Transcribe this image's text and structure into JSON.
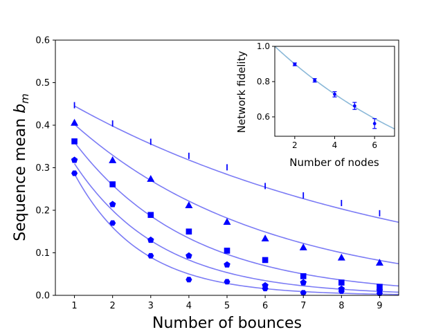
{
  "chart_data": [
    {
      "type": "scatter",
      "xlabel": "Number of bounces",
      "ylabel_text": "Sequence mean ",
      "ylabel_symbol": "b",
      "ylabel_subscript": "m",
      "xlim": [
        0.5,
        9.5
      ],
      "ylim": [
        0.0,
        0.6
      ],
      "xticks": [
        "1",
        "2",
        "3",
        "4",
        "5",
        "6",
        "7",
        "8",
        "9"
      ],
      "yticks": [
        "0.0",
        "0.1",
        "0.2",
        "0.3",
        "0.4",
        "0.5",
        "0.6"
      ],
      "grid": false,
      "x": [
        1,
        2,
        3,
        4,
        5,
        6,
        7,
        8,
        9
      ],
      "series": [
        {
          "marker": "vline",
          "values": [
            0.447,
            0.404,
            0.361,
            0.328,
            0.301,
            0.257,
            0.235,
            0.217,
            0.193
          ],
          "fit_a": 0.498,
          "fit_p": 0.894
        },
        {
          "marker": "triangle",
          "values": [
            0.406,
            0.318,
            0.274,
            0.212,
            0.173,
            0.134,
            0.113,
            0.089,
            0.077
          ],
          "fit_a": 0.49,
          "fit_p": 0.82
        },
        {
          "marker": "square",
          "values": [
            0.362,
            0.261,
            0.189,
            0.15,
            0.105,
            0.083,
            0.045,
            0.03,
            0.02
          ],
          "fit_a": 0.5,
          "fit_p": 0.72
        },
        {
          "marker": "pentagon",
          "values": [
            0.318,
            0.214,
            0.13,
            0.093,
            0.072,
            0.023,
            0.03,
            0.015,
            0.011
          ],
          "fit_a": 0.48,
          "fit_p": 0.645
        },
        {
          "marker": "hexagon",
          "values": [
            0.287,
            0.17,
            0.093,
            0.037,
            0.032,
            0.016,
            0.006,
            0.01,
            0.005
          ],
          "fit_a": 0.51,
          "fit_p": 0.56
        }
      ],
      "fit_color": "#7b7bf5",
      "marker_color": "#0000ff"
    },
    {
      "type": "scatter",
      "xlabel": "Number of nodes",
      "ylabel": "Network fidelity",
      "xlim": [
        1,
        7
      ],
      "ylim": [
        0.49,
        1.0
      ],
      "xticks": [
        "2",
        "4",
        "6"
      ],
      "xtick_values": [
        2,
        4,
        6
      ],
      "yticks": [
        "0.6",
        "0.8",
        "1.0"
      ],
      "ytick_values": [
        0.6,
        0.8,
        1.0
      ],
      "x": [
        2,
        3,
        4,
        5,
        6
      ],
      "values": [
        0.898,
        0.807,
        0.728,
        0.662,
        0.562
      ],
      "errors": [
        0.008,
        0.01,
        0.015,
        0.02,
        0.028
      ],
      "fit_p": 0.9,
      "fit_color": "#8ab8d8",
      "marker_color": "#0000ff"
    }
  ]
}
